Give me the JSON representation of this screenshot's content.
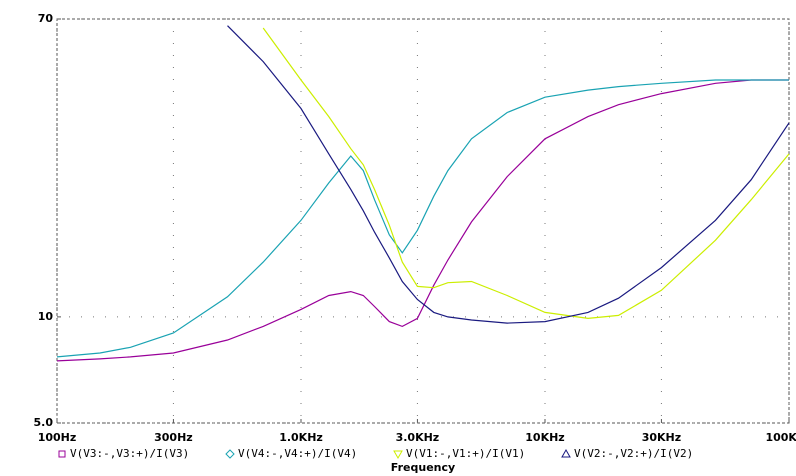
{
  "chart_data": {
    "type": "line",
    "xlabel": "Frequency",
    "xlog": true,
    "ylog": true,
    "grid": true,
    "x": [
      100,
      150,
      200,
      300,
      500,
      700,
      1000,
      1300,
      1600,
      1800,
      2000,
      2300,
      2600,
      3000,
      3500,
      4000,
      5000,
      7000,
      10000,
      15000,
      20000,
      30000,
      50000,
      70000,
      100000
    ],
    "xlim": [
      100,
      100000
    ],
    "xticks": [
      {
        "value": 100,
        "label": "100Hz"
      },
      {
        "value": 300,
        "label": "300Hz"
      },
      {
        "value": 1000,
        "label": "1.0KHz"
      },
      {
        "value": 3000,
        "label": "3.0KHz"
      },
      {
        "value": 10000,
        "label": "10KHz"
      },
      {
        "value": 30000,
        "label": "30KHz"
      },
      {
        "value": 100000,
        "label": "100KHz"
      }
    ],
    "ylim": [
      5,
      70
    ],
    "yticks": [
      {
        "value": 5,
        "label": "5.0"
      },
      10,
      70
    ],
    "series": [
      {
        "name": "V(V3:-,V3:+)/I(V3)",
        "color": "#990099",
        "marker": "square",
        "values": [
          7.5,
          7.6,
          7.7,
          7.9,
          8.6,
          9.4,
          10.5,
          11.5,
          11.8,
          11.5,
          10.7,
          9.7,
          9.4,
          9.9,
          12.3,
          14.5,
          18.6,
          25,
          32,
          37,
          40,
          43,
          46,
          47,
          47
        ]
      },
      {
        "name": "V(V4:-,V4:+)/I(V4)",
        "color": "#1aa3b3",
        "marker": "diamond",
        "values": [
          7.7,
          7.9,
          8.2,
          9.0,
          11.4,
          14.3,
          18.8,
          24,
          28.6,
          26,
          21.5,
          17.1,
          15.2,
          17.6,
          22,
          26,
          32,
          38,
          42,
          44,
          45,
          46,
          47,
          47,
          47
        ]
      },
      {
        "name": "V(V1:-,V1:+)/I(V1)",
        "color": "#ccee00",
        "marker": "triangle-down",
        "values": [
          null,
          null,
          null,
          null,
          null,
          66,
          47,
          37,
          30,
          27,
          23,
          18.2,
          14.3,
          12.2,
          12.1,
          12.5,
          12.6,
          11.5,
          10.3,
          9.9,
          10.1,
          11.9,
          16.5,
          21.5,
          29
        ]
      },
      {
        "name": "V(V2:-,V2:+)/I(V2)",
        "color": "#1a1a80",
        "marker": "triangle-up",
        "values": [
          null,
          null,
          null,
          null,
          67,
          53,
          39,
          29,
          23,
          20,
          17.4,
          14.7,
          12.6,
          11.2,
          10.3,
          10.0,
          9.8,
          9.6,
          9.7,
          10.3,
          11.3,
          13.8,
          18.8,
          24.5,
          35.5
        ]
      }
    ]
  }
}
